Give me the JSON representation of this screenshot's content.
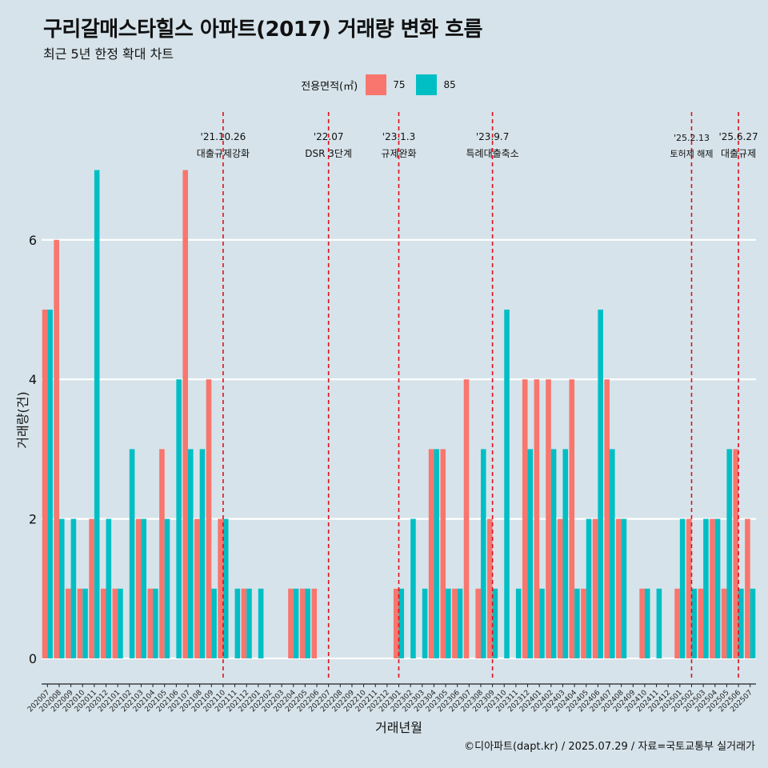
{
  "title": "구리갈매스타힐스 아파트(2017) 거래량 변화 흐름",
  "subtitle": "최근 5년 한정 확대 차트",
  "caption": "©디아파트(dapt.kr) / 2025.07.29 / 자료=국토교통부 실거래가",
  "legend": {
    "title": "전용면적(㎡)",
    "items": [
      {
        "label": "75",
        "color": "#f8766d"
      },
      {
        "label": "85",
        "color": "#00bfc4"
      }
    ]
  },
  "chart_data": {
    "type": "bar",
    "title": "구리갈매스타힐스 아파트(2017) 거래량 변화 흐름",
    "xlabel": "거래년월",
    "ylabel": "거래량(건)",
    "ylim": [
      0,
      7
    ],
    "yticks": [
      0,
      2,
      4,
      6
    ],
    "categories": [
      "202007",
      "202008",
      "202009",
      "202010",
      "202011",
      "202012",
      "202101",
      "202102",
      "202103",
      "202104",
      "202105",
      "202106",
      "202107",
      "202108",
      "202109",
      "202110",
      "202111",
      "202112",
      "202201",
      "202202",
      "202203",
      "202204",
      "202205",
      "202206",
      "202207",
      "202208",
      "202209",
      "202210",
      "202211",
      "202212",
      "202301",
      "202302",
      "202303",
      "202304",
      "202305",
      "202306",
      "202307",
      "202308",
      "202309",
      "202310",
      "202311",
      "202312",
      "202401",
      "202402",
      "202403",
      "202404",
      "202405",
      "202406",
      "202407",
      "202408",
      "202409",
      "202410",
      "202411",
      "202412",
      "202501",
      "202502",
      "202503",
      "202504",
      "202505",
      "202506",
      "202507"
    ],
    "series": [
      {
        "name": "75",
        "color": "#f8766d",
        "values": [
          5,
          6,
          1,
          1,
          2,
          1,
          1,
          0,
          2,
          1,
          3,
          0,
          7,
          2,
          4,
          2,
          0,
          1,
          0,
          0,
          0,
          1,
          1,
          1,
          0,
          0,
          0,
          0,
          0,
          0,
          1,
          0,
          0,
          3,
          3,
          1,
          4,
          1,
          2,
          0,
          0,
          4,
          4,
          4,
          2,
          4,
          1,
          2,
          4,
          2,
          0,
          1,
          0,
          0,
          1,
          2,
          1,
          2,
          1,
          3,
          2
        ]
      },
      {
        "name": "85",
        "color": "#00bfc4",
        "values": [
          5,
          2,
          2,
          1,
          7,
          2,
          1,
          3,
          2,
          1,
          2,
          4,
          3,
          3,
          1,
          2,
          1,
          1,
          1,
          0,
          0,
          1,
          1,
          0,
          0,
          0,
          0,
          0,
          0,
          0,
          1,
          2,
          1,
          3,
          1,
          1,
          0,
          3,
          1,
          5,
          1,
          3,
          1,
          3,
          3,
          1,
          2,
          5,
          3,
          2,
          0,
          1,
          1,
          0,
          2,
          1,
          2,
          2,
          3,
          1,
          1
        ]
      }
    ],
    "events": [
      {
        "month": "202110",
        "date": "'21.10.26",
        "label": "대출규제강화"
      },
      {
        "month": "202207",
        "date": "'22.07",
        "label": "DSR 3단계"
      },
      {
        "month": "202301",
        "date": "'23.1.3",
        "label": "규제완화"
      },
      {
        "month": "202309",
        "date": "'23.9.7",
        "label": "특례대출축소"
      },
      {
        "month": "202502",
        "date": "'25.2.13",
        "label": "토허제 해제"
      },
      {
        "month": "202506",
        "date": "'25.6.27",
        "label": "대출규제"
      }
    ]
  }
}
